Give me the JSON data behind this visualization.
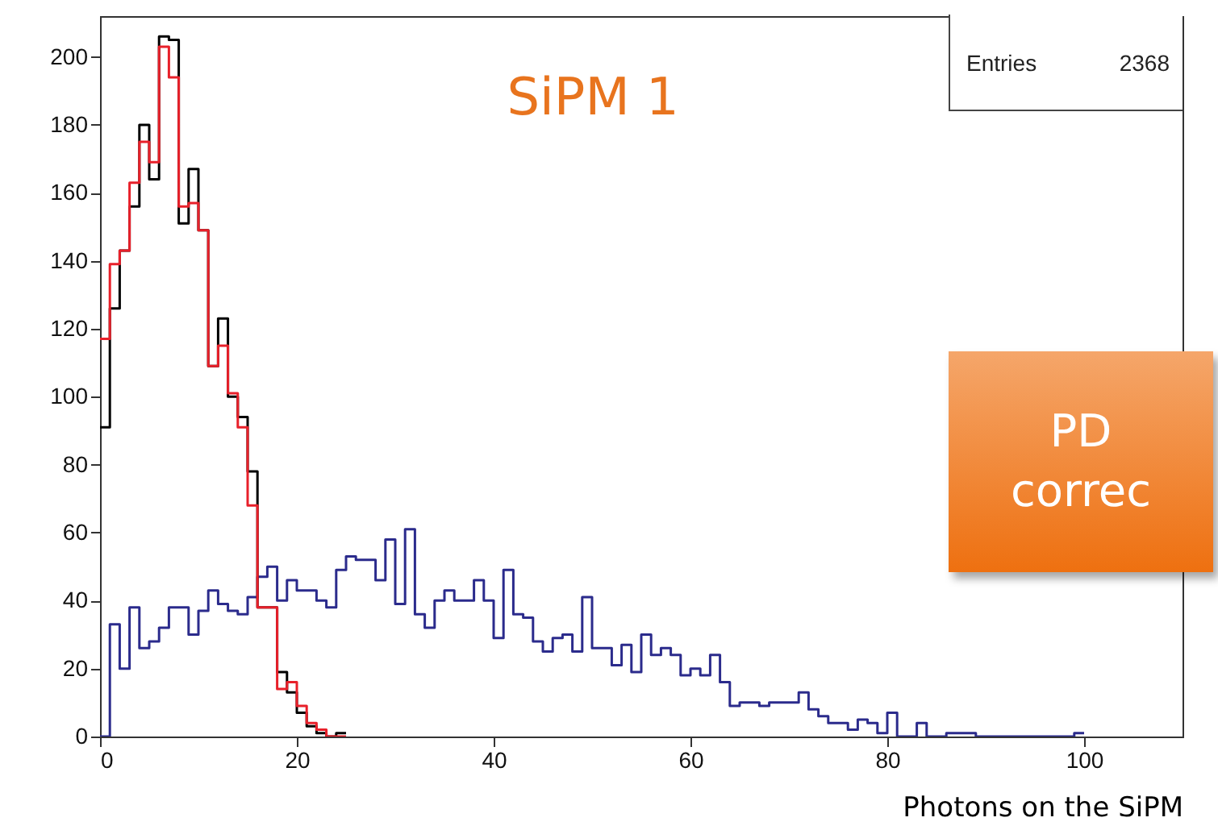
{
  "chart_data": {
    "type": "histogram",
    "title": "SiPM 1",
    "xlabel": "Photons on the SiPM",
    "annotations": [
      "Entries",
      "2368",
      "PD",
      "correc"
    ],
    "bins": [
      0,
      1,
      2,
      3,
      4,
      5,
      6,
      7,
      8,
      9,
      10,
      11,
      12,
      13,
      14,
      15,
      16,
      17,
      18,
      19,
      20,
      21,
      22,
      23,
      24,
      25,
      26,
      27,
      28,
      29,
      30,
      31,
      32,
      33,
      34,
      35,
      36,
      37,
      38,
      39,
      40,
      41,
      42,
      43,
      44,
      45,
      46,
      47,
      48,
      49,
      50,
      51,
      52,
      53,
      54,
      55,
      56,
      57,
      58,
      59,
      60,
      61,
      62,
      63,
      64,
      65,
      66,
      67,
      68,
      69,
      70,
      71,
      72,
      73,
      74,
      75,
      76,
      77,
      78,
      79,
      80,
      81,
      82,
      83,
      84,
      85,
      86,
      87,
      88,
      89,
      90,
      91,
      92,
      93,
      94,
      95,
      96,
      97,
      98,
      99,
      100
    ],
    "series": [
      {
        "color": "#2b2b8c",
        "values": [
          0,
          33,
          20,
          38,
          26,
          28,
          32,
          38,
          38,
          30,
          37,
          43,
          39,
          37,
          36,
          41,
          47,
          50,
          40,
          46,
          43,
          43,
          40,
          38,
          49,
          53,
          52,
          52,
          46,
          58,
          39,
          61,
          36,
          32,
          40,
          43,
          40,
          40,
          46,
          40,
          29,
          49,
          36,
          35,
          28,
          25,
          29,
          30,
          25,
          41,
          26,
          26,
          21,
          27,
          19,
          30,
          24,
          26,
          24,
          18,
          20,
          18,
          24,
          16,
          9,
          10,
          10,
          9,
          10,
          10,
          10,
          13,
          8,
          6,
          4,
          4,
          2,
          5,
          4,
          1,
          7,
          0,
          0,
          4,
          0,
          0,
          1,
          1,
          1,
          0,
          0,
          0,
          0,
          0,
          0,
          0,
          0,
          0,
          0,
          1
        ]
      },
      {
        "color": "#000000",
        "bins": [
          0,
          1,
          2,
          3,
          4,
          5,
          6,
          7,
          8,
          9,
          10,
          11,
          12,
          13,
          14,
          15,
          16,
          17,
          18,
          19,
          20,
          21,
          22,
          23,
          24,
          25
        ],
        "values": [
          91,
          126,
          143,
          156,
          180,
          164,
          206,
          205,
          151,
          167,
          149,
          109,
          123,
          100,
          94,
          78,
          38,
          38,
          19,
          13,
          7,
          3,
          1,
          0,
          1
        ]
      },
      {
        "color": "#e8202a",
        "bins": [
          0,
          1,
          2,
          3,
          4,
          5,
          6,
          7,
          8,
          9,
          10,
          11,
          12,
          13,
          14,
          15,
          16,
          17,
          18,
          19,
          20,
          21,
          22,
          23,
          24,
          25
        ],
        "values": [
          117,
          139,
          143,
          163,
          175,
          169,
          203,
          194,
          156,
          157,
          149,
          109,
          115,
          101,
          91,
          68,
          38,
          38,
          14,
          16,
          9,
          4,
          2,
          0,
          0
        ]
      }
    ],
    "xlim": [
      0,
      110
    ],
    "xticks": [
      0,
      20,
      40,
      60,
      80,
      100
    ],
    "ylim": [
      0,
      212
    ],
    "yticks": [
      0,
      20,
      40,
      60,
      80,
      100,
      120,
      140,
      160,
      180,
      200
    ]
  }
}
